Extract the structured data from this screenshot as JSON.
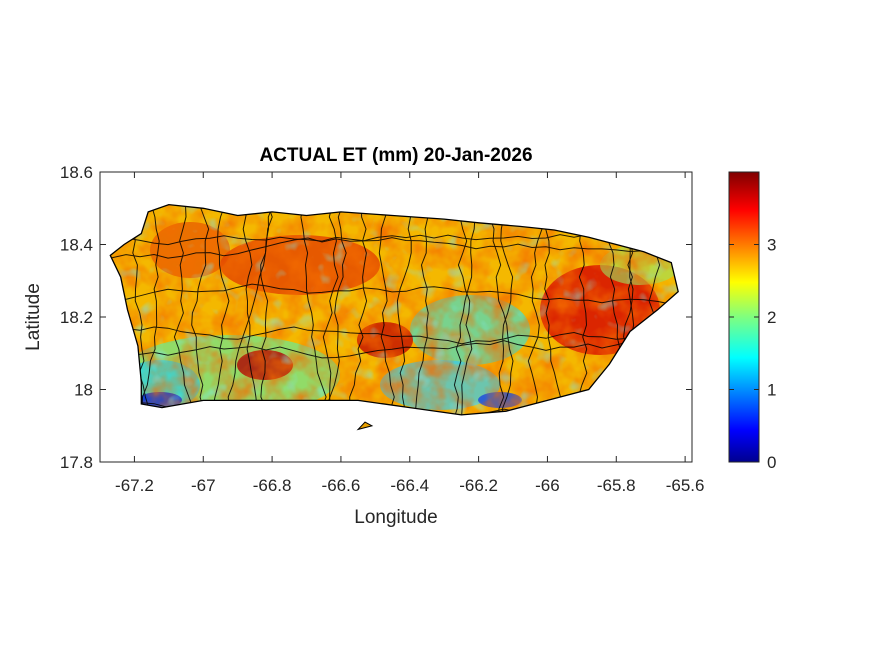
{
  "title": "ACTUAL ET (mm) 20-Jan-2026",
  "axes": {
    "xlabel": "Longitude",
    "ylabel": "Latitude",
    "xlim": [
      -67.3,
      -65.58
    ],
    "ylim": [
      17.8,
      18.6
    ],
    "xticks": [
      -67.2,
      -67.0,
      -66.8,
      -66.6,
      -66.4,
      -66.2,
      -66.0,
      -65.8,
      -65.6
    ],
    "xtick_labels": [
      "-67.2",
      "-67",
      "-66.8",
      "-66.6",
      "-66.4",
      "-66.2",
      "-66",
      "-65.8",
      "-65.6"
    ],
    "yticks": [
      17.8,
      18.0,
      18.2,
      18.4,
      18.6
    ],
    "ytick_labels": [
      "17.8",
      "18",
      "18.2",
      "18.4",
      "18.6"
    ]
  },
  "colorbar": {
    "colormap": "jet",
    "range": [
      0,
      4
    ],
    "ticks": [
      0,
      1,
      2,
      3
    ],
    "tick_labels": [
      "0",
      "1",
      "2",
      "3"
    ]
  },
  "map": {
    "region": "Puerto Rico",
    "variable": "Actual evapotranspiration",
    "units": "mm",
    "outline_color": "#000000",
    "outline_lonlat": [
      [
        -67.27,
        18.37
      ],
      [
        -67.23,
        18.4
      ],
      [
        -67.18,
        18.43
      ],
      [
        -67.16,
        18.49
      ],
      [
        -67.1,
        18.51
      ],
      [
        -67.0,
        18.5
      ],
      [
        -66.9,
        18.48
      ],
      [
        -66.8,
        18.49
      ],
      [
        -66.7,
        18.48
      ],
      [
        -66.6,
        18.49
      ],
      [
        -66.45,
        18.48
      ],
      [
        -66.3,
        18.47
      ],
      [
        -66.2,
        18.46
      ],
      [
        -66.08,
        18.45
      ],
      [
        -65.98,
        18.44
      ],
      [
        -65.88,
        18.42
      ],
      [
        -65.8,
        18.4
      ],
      [
        -65.72,
        18.38
      ],
      [
        -65.64,
        18.35
      ],
      [
        -65.62,
        18.27
      ],
      [
        -65.68,
        18.22
      ],
      [
        -65.76,
        18.16
      ],
      [
        -65.82,
        18.07
      ],
      [
        -65.88,
        18.0
      ],
      [
        -66.0,
        17.97
      ],
      [
        -66.12,
        17.94
      ],
      [
        -66.25,
        17.93
      ],
      [
        -66.4,
        17.95
      ],
      [
        -66.55,
        17.97
      ],
      [
        -66.7,
        17.97
      ],
      [
        -66.85,
        17.97
      ],
      [
        -67.0,
        17.97
      ],
      [
        -67.12,
        17.95
      ],
      [
        -67.18,
        17.96
      ],
      [
        -67.18,
        18.02
      ],
      [
        -67.19,
        18.12
      ],
      [
        -67.22,
        18.22
      ],
      [
        -67.24,
        18.31
      ]
    ],
    "islet_lonlat": [
      [
        -66.53,
        17.91
      ],
      [
        -66.51,
        17.9
      ],
      [
        -66.55,
        17.89
      ]
    ]
  }
}
